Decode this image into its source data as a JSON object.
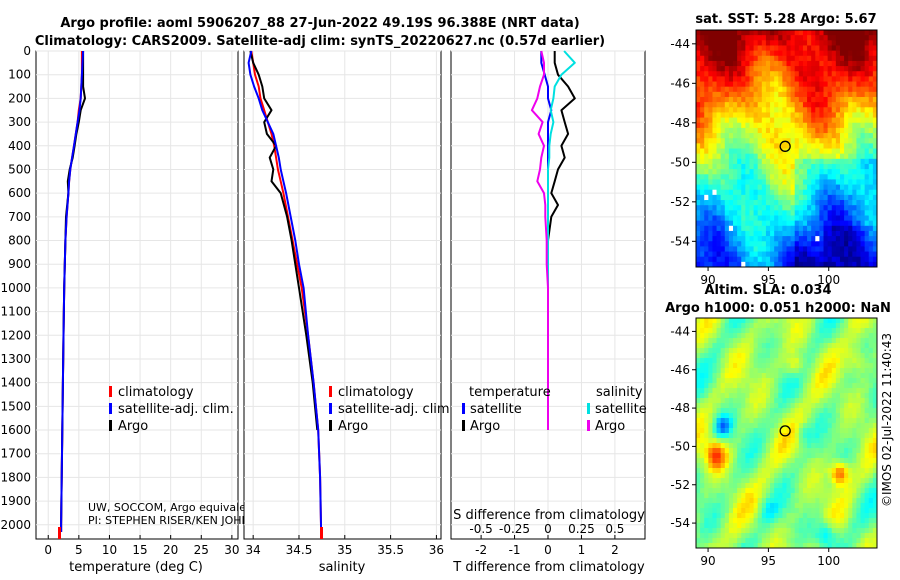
{
  "header": {
    "title_line1": "Argo profile: aoml 5906207_88 27-Jun-2022 49.19S 96.388E (NRT data)",
    "title_line2": "Climatology: CARS2009. Satellite-adj clim: synTS_20220627.nc (0.57d earlier)"
  },
  "colors": {
    "climatology": "#ff0000",
    "satellite": "#0000ff",
    "argo": "#000000",
    "salinity_satellite": "#00e0e0",
    "salinity_argo": "#ee00ee"
  },
  "chart_data": [
    {
      "id": "temperature",
      "type": "line",
      "xlabel": "temperature (deg C)",
      "ylabel": "",
      "xlim": [
        -2,
        31
      ],
      "ylim": [
        2060,
        0
      ],
      "xticks": [
        0,
        5,
        10,
        15,
        20,
        25,
        30
      ],
      "yticks": [
        0,
        100,
        200,
        300,
        400,
        500,
        600,
        700,
        800,
        900,
        1000,
        1100,
        1200,
        1300,
        1400,
        1500,
        1600,
        1700,
        1800,
        1900,
        2000
      ],
      "legend": [
        "climatology",
        "satellite-adj. clim.",
        "Argo"
      ],
      "legend_position": "center-right",
      "annotation": [
        "UW, SOCCOM, Argo equivale",
        "PI: STEPHEN RISER/KEN JOHN"
      ],
      "depth": [
        0,
        50,
        100,
        150,
        200,
        250,
        300,
        350,
        400,
        450,
        500,
        550,
        600,
        700,
        800,
        900,
        1000,
        1200,
        1400,
        1600,
        1800,
        2000,
        2030
      ],
      "series": [
        {
          "name": "climatology",
          "values": [
            5.5,
            5.5,
            5.5,
            5.4,
            5.3,
            5.0,
            4.8,
            4.5,
            4.2,
            3.9,
            3.6,
            3.4,
            3.3,
            3.0,
            2.8,
            2.7,
            2.6,
            2.5,
            2.4,
            2.3,
            2.2,
            2.1,
            2.1
          ]
        },
        {
          "name": "satellite-adj. clim.",
          "values": [
            5.7,
            5.6,
            5.5,
            5.4,
            5.3,
            5.1,
            4.8,
            4.5,
            4.2,
            3.9,
            3.6,
            3.4,
            3.3,
            3.0,
            2.8,
            2.7,
            2.6,
            2.5,
            2.4,
            2.3,
            2.2,
            2.1,
            2.1
          ]
        },
        {
          "name": "Argo",
          "values": [
            5.7,
            5.7,
            5.7,
            5.7,
            6.0,
            5.3,
            5.0,
            4.6,
            4.3,
            4.0,
            3.5,
            3.2,
            3.3,
            2.9,
            2.8,
            2.7,
            2.6,
            2.5,
            2.4,
            2.3,
            2.2,
            2.1,
            2.1
          ]
        }
      ]
    },
    {
      "id": "salinity",
      "type": "line",
      "xlabel": "salinity",
      "ylabel": "",
      "xlim": [
        33.9,
        36.05
      ],
      "ylim": [
        2060,
        0
      ],
      "xticks": [
        34,
        34.5,
        35,
        35.5,
        36
      ],
      "xtick_labels": [
        "34",
        "34.5",
        "35",
        "35.5",
        "36"
      ],
      "legend": [
        "climatology",
        "satellite-adj. clim.",
        "Argo"
      ],
      "legend_position": "center-right",
      "depth": [
        0,
        50,
        100,
        150,
        200,
        250,
        300,
        350,
        400,
        450,
        500,
        550,
        600,
        700,
        800,
        900,
        1000,
        1200,
        1400,
        1600,
        1800,
        2000,
        2030
      ],
      "series": [
        {
          "name": "climatology",
          "values": [
            33.98,
            34.0,
            34.02,
            34.06,
            34.08,
            34.12,
            34.16,
            34.2,
            34.23,
            34.25,
            34.27,
            34.3,
            34.33,
            34.38,
            34.43,
            34.48,
            34.53,
            34.6,
            34.66,
            34.71,
            34.73,
            34.74,
            34.74
          ]
        },
        {
          "name": "satellite-adj. clim.",
          "values": [
            33.98,
            33.95,
            33.97,
            34.01,
            34.06,
            34.1,
            34.16,
            34.22,
            34.25,
            34.28,
            34.3,
            34.33,
            34.36,
            34.41,
            34.46,
            34.5,
            34.55,
            34.6,
            34.66,
            34.71,
            34.73,
            34.74,
            34.74
          ]
        },
        {
          "name": "Argo",
          "values": [
            33.97,
            34.0,
            34.06,
            34.1,
            34.12,
            34.2,
            34.12,
            34.15,
            34.25,
            34.18,
            34.22,
            34.2,
            34.3,
            34.37,
            34.42,
            34.46,
            34.5,
            34.58,
            34.65,
            34.7
          ]
        }
      ]
    },
    {
      "id": "differences",
      "type": "line",
      "xlabel": "T difference from climatology",
      "title_top": "S difference from climatology",
      "xlim": [
        -2.9,
        2.9
      ],
      "ylim": [
        2060,
        0
      ],
      "xticks": [
        -2,
        -1,
        0,
        1,
        2
      ],
      "top_ticks": [
        -0.5,
        -0.25,
        0,
        0.25,
        0.5
      ],
      "top_tick_labels": [
        "-0.5",
        "-0.25",
        "0",
        "0.25",
        "0.5"
      ],
      "legend_headers": [
        "temperature",
        "salinity"
      ],
      "legend": [
        "satellite",
        "Argo",
        "satellite",
        "Argo"
      ],
      "depth": [
        0,
        50,
        100,
        150,
        200,
        250,
        300,
        350,
        400,
        450,
        500,
        550,
        600,
        650,
        700,
        800,
        900,
        1000,
        1200,
        1400,
        1600
      ],
      "series": [
        {
          "name": "temperature satellite",
          "values": [
            -0.2,
            -0.2,
            -0.1,
            0,
            0,
            0.1,
            0,
            0,
            0,
            0,
            0,
            0,
            0,
            0,
            0,
            0,
            0,
            0,
            0,
            0,
            0
          ]
        },
        {
          "name": "temperature Argo",
          "values": [
            0.2,
            0.2,
            0.3,
            0.6,
            0.8,
            0.4,
            0.5,
            0.6,
            0.4,
            0.5,
            0.3,
            0.2,
            0.1,
            0.3,
            0.1,
            0,
            0,
            0,
            0,
            0,
            0
          ]
        },
        {
          "name": "salinity satellite",
          "values": [
            0.12,
            0.2,
            0.1,
            0.05,
            0.04,
            0.02,
            0.04,
            0.02,
            0.01,
            0.01,
            0,
            0,
            0,
            0,
            0,
            0,
            0,
            0,
            0,
            0,
            0
          ]
        },
        {
          "name": "salinity Argo",
          "values": [
            -0.05,
            -0.03,
            -0.03,
            -0.06,
            -0.08,
            -0.12,
            -0.04,
            -0.07,
            -0.03,
            -0.05,
            -0.06,
            -0.08,
            -0.03,
            -0.02,
            -0.02,
            -0.01,
            -0.01,
            0,
            0,
            0,
            0
          ]
        }
      ]
    },
    {
      "id": "sst_map",
      "type": "heatmap",
      "title": "sat. SST: 5.28 Argo: 5.67",
      "xlim": [
        89,
        104
      ],
      "ylim": [
        -55.3,
        -43.3
      ],
      "xticks": [
        90,
        95,
        100
      ],
      "yticks": [
        -44,
        -46,
        -48,
        -50,
        -52,
        -54
      ],
      "marker": {
        "lon": 96.388,
        "lat": -49.19
      }
    },
    {
      "id": "sla_map",
      "type": "heatmap",
      "title_line1": "Altim. SLA: 0.034",
      "title_line2": "Argo h1000: 0.051 h2000: NaN",
      "xlim": [
        89,
        104
      ],
      "ylim": [
        -55.3,
        -43.3
      ],
      "xticks": [
        90,
        95,
        100
      ],
      "yticks": [
        -44,
        -46,
        -48,
        -50,
        -52,
        -54
      ],
      "marker": {
        "lon": 96.388,
        "lat": -49.19
      }
    }
  ],
  "watermark": "©IMOS 02-Jul-2022 11:40:43"
}
